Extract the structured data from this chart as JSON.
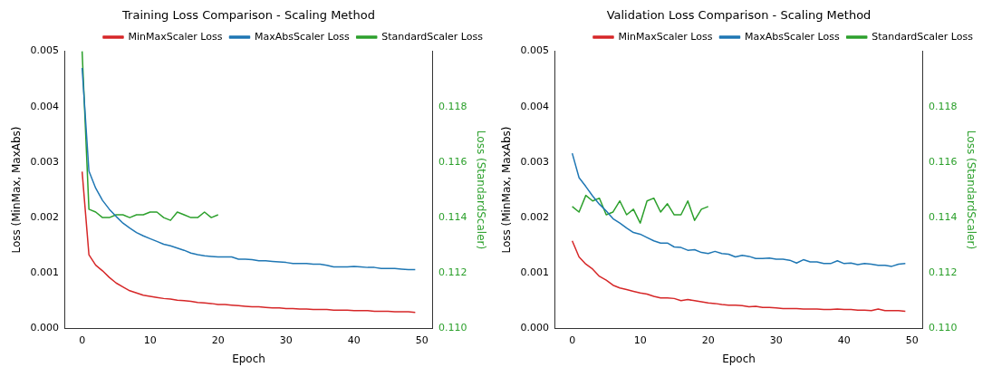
{
  "chart_data": [
    {
      "type": "line",
      "title": "Training Loss Comparison - Scaling Method",
      "xlabel": "Epoch",
      "ylabel": "Loss (MinMax, MaxAbs)",
      "y2label": "Loss (StandardScaler)",
      "legend": "top right",
      "grid": false,
      "x": [
        0,
        1,
        2,
        3,
        4,
        5,
        6,
        7,
        8,
        9,
        10,
        11,
        12,
        13,
        14,
        15,
        16,
        17,
        18,
        19,
        20,
        21,
        22,
        23,
        24,
        25,
        26,
        27,
        28,
        29,
        30,
        31,
        32,
        33,
        34,
        35,
        36,
        37,
        38,
        39,
        40,
        41,
        42,
        43,
        44,
        45,
        46,
        47,
        48,
        49
      ],
      "xlim": [
        -2.5,
        51.5
      ],
      "xticks": [
        0,
        10,
        20,
        30,
        40,
        50
      ],
      "ylim": [
        0,
        0.005
      ],
      "yticks": [
        {
          "value": 0,
          "label": "0.000"
        },
        {
          "value": 0.001,
          "label": "0.001"
        },
        {
          "value": 0.002,
          "label": "0.002"
        },
        {
          "value": 0.003,
          "label": "0.003"
        },
        {
          "value": 0.004,
          "label": "0.004"
        },
        {
          "value": 0.005,
          "label": "0.005"
        }
      ],
      "y2lim": [
        0.11,
        0.12
      ],
      "y2ticks": [
        {
          "value": 0.11,
          "label": "0.110"
        },
        {
          "value": 0.112,
          "label": "0.112"
        },
        {
          "value": 0.114,
          "label": "0.114"
        },
        {
          "value": 0.116,
          "label": "0.116"
        },
        {
          "value": 0.118,
          "label": "0.118"
        }
      ],
      "series": [
        {
          "name": "MinMaxScaler Loss",
          "color": "#d62728",
          "values": [
            0.00283,
            0.00133,
            0.00114,
            0.00104,
            0.00092,
            0.00082,
            0.00075,
            0.00068,
            0.00064,
            0.0006,
            0.00058,
            0.00056,
            0.00054,
            0.00053,
            0.00051,
            0.0005,
            0.00049,
            0.00047,
            0.00046,
            0.00045,
            0.00043,
            0.00043,
            0.00042,
            0.00041,
            0.0004,
            0.00039,
            0.00039,
            0.00038,
            0.00037,
            0.00037,
            0.00036,
            0.00036,
            0.00035,
            0.00035,
            0.00034,
            0.00034,
            0.00034,
            0.00033,
            0.00033,
            0.00033,
            0.00032,
            0.00032,
            0.00032,
            0.00031,
            0.00031,
            0.00031,
            0.0003,
            0.0003,
            0.0003,
            0.00029
          ]
        },
        {
          "name": "MaxAbsScaler Loss",
          "color": "#1f77b4",
          "values": [
            0.0047,
            0.00284,
            0.00253,
            0.00231,
            0.00215,
            0.00202,
            0.0019,
            0.00181,
            0.00173,
            0.00167,
            0.00162,
            0.00157,
            0.00152,
            0.00149,
            0.00145,
            0.00141,
            0.00136,
            0.00133,
            0.00131,
            0.0013,
            0.00129,
            0.00129,
            0.00129,
            0.00125,
            0.00125,
            0.00124,
            0.00122,
            0.00122,
            0.00121,
            0.0012,
            0.00119,
            0.00117,
            0.00117,
            0.00117,
            0.00116,
            0.00116,
            0.00114,
            0.00111,
            0.00111,
            0.00111,
            0.00112,
            0.00111,
            0.0011,
            0.0011,
            0.00108,
            0.00108,
            0.00108,
            0.00107,
            0.00106,
            0.00106
          ]
        },
        {
          "name": "StandardScaler Loss",
          "color": "#2ca02c",
          "axis": "y2",
          "x": [
            0,
            1,
            2,
            3,
            4,
            5,
            6,
            7,
            8,
            9,
            10,
            11,
            12,
            13,
            14,
            15,
            16,
            17,
            18,
            19,
            20
          ],
          "values": [
            0.12,
            0.1143,
            0.1142,
            0.114,
            0.114,
            0.1141,
            0.1141,
            0.114,
            0.1141,
            0.1141,
            0.1142,
            0.1142,
            0.114,
            0.1139,
            0.1142,
            0.1141,
            0.114,
            0.114,
            0.1142,
            0.114,
            0.1141
          ]
        }
      ]
    },
    {
      "type": "line",
      "title": "Validation Loss Comparison - Scaling Method",
      "xlabel": "Epoch",
      "ylabel": "Loss (MinMax, MaxAbs)",
      "y2label": "Loss (StandardScaler)",
      "legend": "top right",
      "grid": false,
      "x": [
        0,
        1,
        2,
        3,
        4,
        5,
        6,
        7,
        8,
        9,
        10,
        11,
        12,
        13,
        14,
        15,
        16,
        17,
        18,
        19,
        20,
        21,
        22,
        23,
        24,
        25,
        26,
        27,
        28,
        29,
        30,
        31,
        32,
        33,
        34,
        35,
        36,
        37,
        38,
        39,
        40,
        41,
        42,
        43,
        44,
        45,
        46,
        47,
        48,
        49
      ],
      "xlim": [
        -2.5,
        51.5
      ],
      "xticks": [
        0,
        10,
        20,
        30,
        40,
        50
      ],
      "ylim": [
        0,
        0.005
      ],
      "yticks": [
        {
          "value": 0,
          "label": "0.000"
        },
        {
          "value": 0.001,
          "label": "0.001"
        },
        {
          "value": 0.002,
          "label": "0.002"
        },
        {
          "value": 0.003,
          "label": "0.003"
        },
        {
          "value": 0.004,
          "label": "0.004"
        },
        {
          "value": 0.005,
          "label": "0.005"
        }
      ],
      "y2lim": [
        0.11,
        0.12
      ],
      "y2ticks": [
        {
          "value": 0.11,
          "label": "0.110"
        },
        {
          "value": 0.112,
          "label": "0.112"
        },
        {
          "value": 0.114,
          "label": "0.114"
        },
        {
          "value": 0.116,
          "label": "0.116"
        },
        {
          "value": 0.118,
          "label": "0.118"
        }
      ],
      "series": [
        {
          "name": "MinMaxScaler Loss",
          "color": "#d62728",
          "values": [
            0.00158,
            0.00129,
            0.00116,
            0.00107,
            0.00094,
            0.00087,
            0.00078,
            0.00073,
            0.0007,
            0.00067,
            0.00064,
            0.00062,
            0.00058,
            0.00055,
            0.00055,
            0.00054,
            0.0005,
            0.00052,
            0.0005,
            0.00048,
            0.00046,
            0.00045,
            0.00043,
            0.00042,
            0.00042,
            0.00041,
            0.00039,
            0.0004,
            0.00038,
            0.00038,
            0.00037,
            0.00036,
            0.00036,
            0.00036,
            0.00035,
            0.00035,
            0.00035,
            0.00034,
            0.00034,
            0.00035,
            0.00034,
            0.00034,
            0.00033,
            0.00033,
            0.00032,
            0.00035,
            0.00032,
            0.00032,
            0.00032,
            0.00031
          ]
        },
        {
          "name": "MaxAbsScaler Loss",
          "color": "#1f77b4",
          "values": [
            0.00316,
            0.00272,
            0.00256,
            0.00239,
            0.00224,
            0.00212,
            0.00198,
            0.0019,
            0.00181,
            0.00173,
            0.0017,
            0.00164,
            0.00158,
            0.00154,
            0.00154,
            0.00147,
            0.00146,
            0.00141,
            0.00142,
            0.00137,
            0.00135,
            0.00139,
            0.00135,
            0.00134,
            0.00129,
            0.00132,
            0.0013,
            0.00126,
            0.00126,
            0.00127,
            0.00125,
            0.00125,
            0.00123,
            0.00118,
            0.00124,
            0.0012,
            0.0012,
            0.00117,
            0.00117,
            0.00122,
            0.00117,
            0.00118,
            0.00115,
            0.00117,
            0.00116,
            0.00114,
            0.00114,
            0.00112,
            0.00116,
            0.00117
          ]
        },
        {
          "name": "StandardScaler Loss",
          "color": "#2ca02c",
          "axis": "y2",
          "x": [
            0,
            1,
            2,
            3,
            4,
            5,
            6,
            7,
            8,
            9,
            10,
            11,
            12,
            13,
            14,
            15,
            16,
            17,
            18,
            19,
            20
          ],
          "values": [
            0.1144,
            0.1142,
            0.1148,
            0.1146,
            0.1147,
            0.1141,
            0.1142,
            0.1146,
            0.1141,
            0.1143,
            0.1138,
            0.1146,
            0.1147,
            0.1142,
            0.1145,
            0.1141,
            0.1141,
            0.1146,
            0.1139,
            0.1143,
            0.1144
          ]
        }
      ]
    }
  ]
}
